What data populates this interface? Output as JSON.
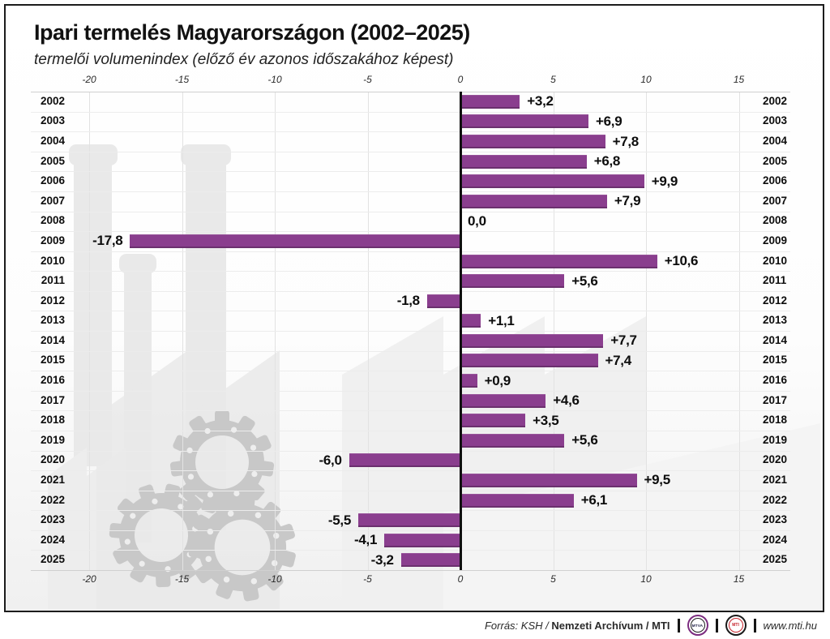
{
  "header": {
    "title": "Ipari termelés Magyarországon (2002–2025)",
    "subtitle": "termelői volumenindex (előző év azonos időszakához képest)"
  },
  "chart_data": {
    "type": "bar",
    "orientation": "horizontal",
    "categories": [
      "2002",
      "2003",
      "2004",
      "2005",
      "2006",
      "2007",
      "2008",
      "2009",
      "2010",
      "2011",
      "2012",
      "2013",
      "2014",
      "2015",
      "2016",
      "2017",
      "2018",
      "2019",
      "2020",
      "2021",
      "2022",
      "2023",
      "2024",
      "2025"
    ],
    "values": [
      3.2,
      6.9,
      7.8,
      6.8,
      9.9,
      7.9,
      0.0,
      -17.8,
      10.6,
      5.6,
      -1.8,
      1.1,
      7.7,
      7.4,
      0.9,
      4.6,
      3.5,
      5.6,
      -6.0,
      9.5,
      6.1,
      -5.5,
      -4.1,
      -3.2
    ],
    "value_labels": [
      "+3,2",
      "+6,9",
      "+7,8",
      "+6,8",
      "+9,9",
      "+7,9",
      "0,0",
      "-17,8",
      "+10,6",
      "+5,6",
      "-1,8",
      "+1,1",
      "+7,7",
      "+7,4",
      "+0,9",
      "+4,6",
      "+3,5",
      "+5,6",
      "-6,0",
      "+9,5",
      "+6,1",
      "-5,5",
      "-4,1",
      "-3,2"
    ],
    "axis_ticks": [
      -20,
      -15,
      -10,
      -5,
      0,
      5,
      10,
      15
    ],
    "xlim": [
      -22.1,
      16.0
    ],
    "grid": true,
    "bar_color": "#8a3e8e",
    "zero_line_color": "#101010",
    "background_art_color": "#e9e9e9",
    "gear_color": "#c8c8c8",
    "title": "Ipari termelés Magyarországon (2002–2025)",
    "xlabel": "",
    "ylabel": ""
  },
  "footer": {
    "source_italic": "Forrás: KSH /",
    "source_bold": "Nemzeti Archívum",
    "source_suffix": "/ MTI",
    "logo_mtva": "MTVA",
    "logo_mti": "MTI",
    "website": "www.mti.hu"
  }
}
